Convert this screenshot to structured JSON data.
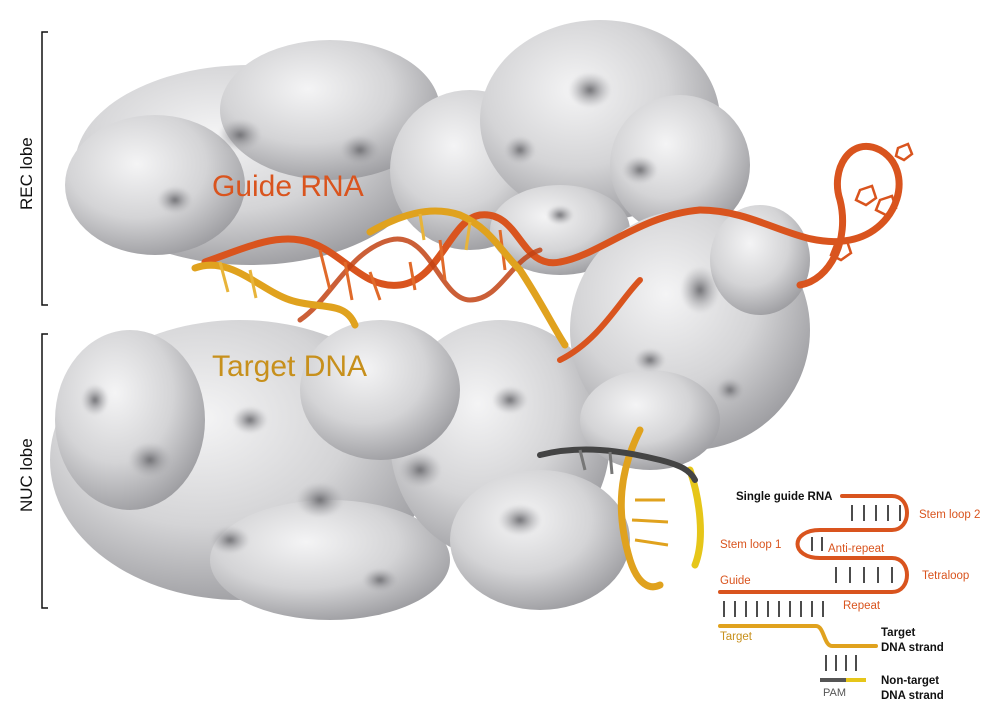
{
  "labels": {
    "guide_rna": "Guide RNA",
    "target_dna": "Target DNA",
    "rec_lobe": "REC lobe",
    "nuc_lobe": "NUC lobe"
  },
  "legend": {
    "single_guide_rna": "Single guide RNA",
    "stem_loop_2": "Stem loop 2",
    "stem_loop_1": "Stem loop 1",
    "anti_repeat": "Anti-repeat",
    "tetraloop": "Tetraloop",
    "guide": "Guide",
    "repeat": "Repeat",
    "target": "Target",
    "target_dna_strand_1": "Target",
    "target_dna_strand_2": "DNA strand",
    "pam": "PAM",
    "non_target_1": "Non-target",
    "non_target_2": "DNA strand"
  },
  "colors": {
    "rna_orange": "#d9541e",
    "dna_gold": "#e0a21e",
    "protein_gray": "#d2d2d4",
    "protein_shadow": "#8c8c90",
    "pam_dark": "#555555",
    "pam_yellow": "#e6c619",
    "text_dark": "#111111"
  }
}
